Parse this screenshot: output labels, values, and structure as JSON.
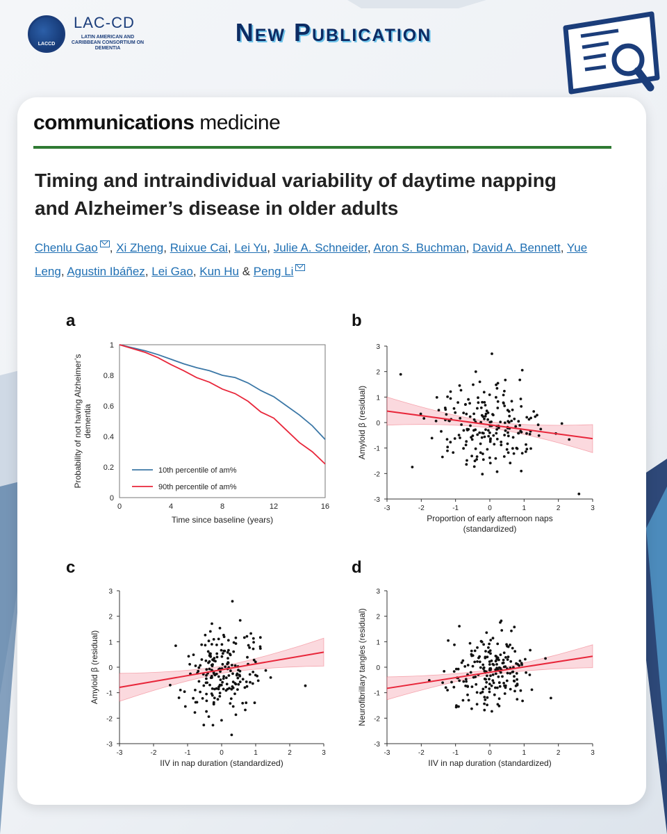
{
  "header": {
    "logo_mark": "LACCD",
    "logo_title": "LAC-CD",
    "logo_subtitle": "LATIN AMERICAN AND CARIBBEAN CONSORTIUM ON DEMENTIA",
    "headline": "New Publication",
    "icon": "publication-search-icon"
  },
  "journal": {
    "bold": "communications",
    "light": "medicine"
  },
  "article": {
    "title": "Timing and intraindividual variability of daytime napping and Alzheimer’s disease in older adults",
    "authors": [
      "Chenlu Gao",
      "Xi Zheng",
      "Ruixue Cai",
      "Lei Yu",
      "Julie A. Schneider",
      "Aron S. Buchman",
      "David A. Bennett",
      "Yue Leng",
      "Agustin Ibáñez",
      "Lei Gao",
      "Kun Hu",
      "Peng Li"
    ],
    "amp": "&"
  },
  "colors": {
    "navy": "#0d2b63",
    "blue_line": "#3b77a6",
    "red_line": "#e8263a",
    "band": "#f7b9c3",
    "green_rule": "#2f7a33"
  },
  "chart_data": [
    {
      "panel": "a",
      "type": "line",
      "title": "",
      "xlabel": "Time since baseline (years)",
      "ylabel_lines": [
        "Probability of not having Alzheimer’s",
        "dementia"
      ],
      "xlim": [
        0,
        16
      ],
      "ylim": [
        0,
        1
      ],
      "xticks": [
        0,
        4,
        8,
        12,
        16
      ],
      "yticks": [
        0,
        0.2,
        0.4,
        0.6,
        0.8,
        1
      ],
      "ytick_labels": [
        "0",
        "0.2",
        "0.4",
        "0.6",
        "0.8",
        "1"
      ],
      "legend_position": "bottom-left",
      "series": [
        {
          "name": "10th percentile of am%",
          "color": "#3b77a6",
          "x": [
            0,
            1,
            2,
            3,
            4,
            5,
            6,
            7,
            8,
            9,
            10,
            11,
            12,
            13,
            14,
            15,
            16
          ],
          "y": [
            1,
            0.98,
            0.96,
            0.935,
            0.905,
            0.875,
            0.85,
            0.83,
            0.8,
            0.785,
            0.75,
            0.7,
            0.66,
            0.6,
            0.54,
            0.47,
            0.38
          ]
        },
        {
          "name": "90th percentile of am%",
          "color": "#e8263a",
          "x": [
            0,
            1,
            2,
            3,
            4,
            5,
            6,
            7,
            8,
            9,
            10,
            11,
            12,
            13,
            14,
            15,
            16
          ],
          "y": [
            1,
            0.975,
            0.95,
            0.915,
            0.87,
            0.83,
            0.785,
            0.755,
            0.71,
            0.68,
            0.63,
            0.56,
            0.52,
            0.44,
            0.36,
            0.3,
            0.22
          ]
        }
      ]
    },
    {
      "panel": "b",
      "type": "scatter",
      "xlabel": "Proportion of early afternoon naps",
      "xlabel2": "(standardized)",
      "ylabel": "Amyloid β (residual)",
      "xlim": [
        -3,
        3
      ],
      "ylim": [
        -3,
        3
      ],
      "xticks": [
        -3,
        -2,
        -1,
        0,
        1,
        2,
        3
      ],
      "yticks": [
        -3,
        -2,
        -1,
        0,
        1,
        2,
        3
      ],
      "fit": {
        "slope": -0.18,
        "intercept": -0.09,
        "band_edge": 0.55,
        "band_center": 0.12
      },
      "seed": 11,
      "n": 200,
      "x_sd": 0.9,
      "y_sd": 0.9
    },
    {
      "panel": "c",
      "type": "scatter",
      "xlabel": "IIV in nap duration (standardized)",
      "xlabel2": "",
      "ylabel": "Amyloid β (residual)",
      "xlim": [
        -3,
        3
      ],
      "ylim": [
        -3,
        3
      ],
      "xticks": [
        -3,
        -2,
        -1,
        0,
        1,
        2,
        3
      ],
      "yticks": [
        -3,
        -2,
        -1,
        0,
        1,
        2,
        3
      ],
      "fit": {
        "slope": 0.23,
        "intercept": -0.1,
        "band_edge": 0.55,
        "band_center": 0.14
      },
      "seed": 23,
      "n": 200,
      "x_sd": 0.6,
      "y_sd": 0.9
    },
    {
      "panel": "d",
      "type": "scatter",
      "xlabel": "IIV in nap duration (standardized)",
      "xlabel2": "",
      "ylabel": "Neurofibrillary tangles (residual)",
      "xlim": [
        -3,
        3
      ],
      "ylim": [
        -3,
        3
      ],
      "xticks": [
        -3,
        -2,
        -1,
        0,
        1,
        2,
        3
      ],
      "yticks": [
        -3,
        -2,
        -1,
        0,
        1,
        2,
        3
      ],
      "fit": {
        "slope": 0.21,
        "intercept": -0.2,
        "band_edge": 0.45,
        "band_center": 0.1
      },
      "seed": 37,
      "n": 200,
      "x_sd": 0.6,
      "y_sd": 0.7
    }
  ]
}
